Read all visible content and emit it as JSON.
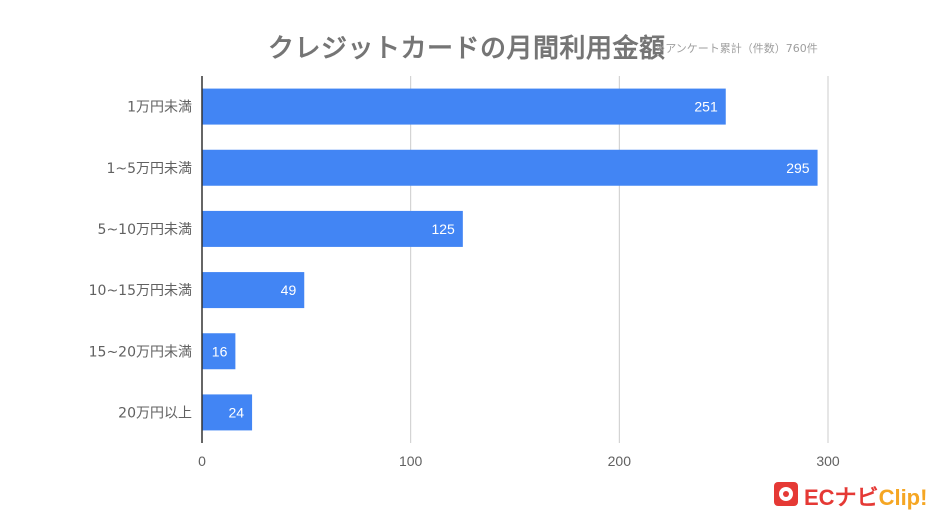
{
  "header": {
    "title": "クレジットカードの月間利用金額",
    "note": "※アンケート累計（件数）760件"
  },
  "logo": {
    "brand": "ECナビ",
    "clip": "Clip!"
  },
  "chart_data": {
    "type": "bar",
    "orientation": "horizontal",
    "title": "クレジットカードの月間利用金額",
    "categories": [
      "1万円未満",
      "1~5万円未満",
      "5~10万円未満",
      "10~15万円未満",
      "15~20万円未満",
      "20万円以上"
    ],
    "values": [
      251,
      295,
      125,
      49,
      16,
      24
    ],
    "xlim": [
      0,
      300
    ],
    "xticks": [
      0,
      100,
      200,
      300
    ],
    "grid": true,
    "bar_color": "#4285f4",
    "data_label_color": "#ffffff"
  }
}
